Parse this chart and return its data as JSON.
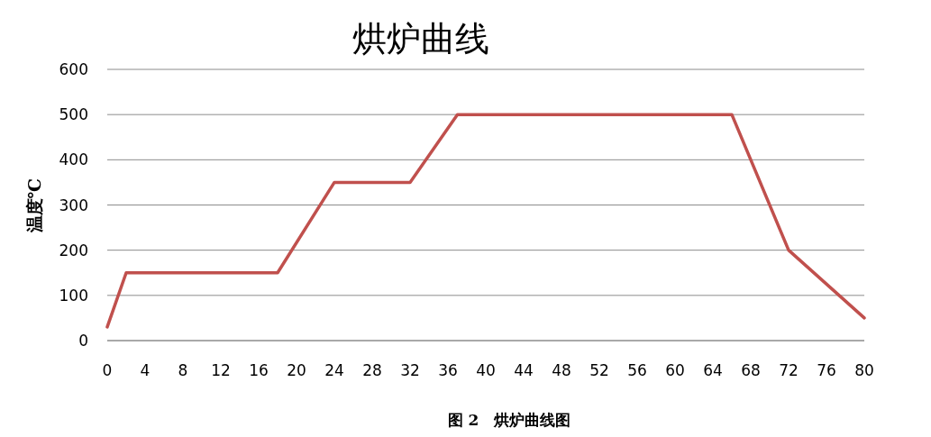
{
  "chart_data": {
    "type": "line",
    "title": "烘炉曲线",
    "ylabel": "温度℃",
    "x": [
      0,
      2,
      18,
      24,
      32,
      37,
      66,
      72,
      80
    ],
    "series": [
      {
        "color": "#c0504d",
        "values": [
          30,
          150,
          150,
          350,
          350,
          500,
          500,
          200,
          50
        ]
      }
    ],
    "xlim": [
      0,
      80
    ],
    "xticks": [
      0,
      4,
      8,
      12,
      16,
      20,
      24,
      28,
      32,
      36,
      40,
      44,
      48,
      52,
      56,
      60,
      64,
      68,
      72,
      76,
      80
    ],
    "ylim": [
      0,
      600
    ],
    "yticks": [
      0,
      100,
      200,
      300,
      400,
      500,
      600
    ],
    "grid": "y",
    "marker": "none",
    "line_style": "solid",
    "annotations": [
      "图 2　烘炉曲线图"
    ]
  }
}
